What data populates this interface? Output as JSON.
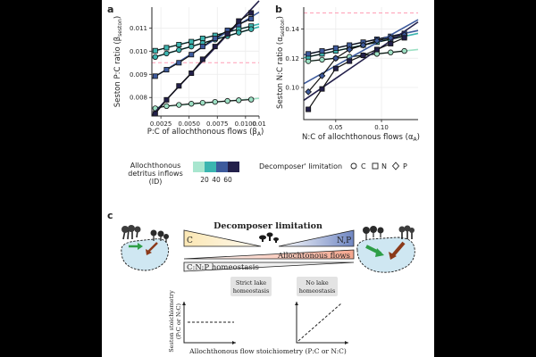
{
  "panel_a": {
    "letter": "a",
    "ylabel_main": "Seston P:C ratio (β",
    "ylabel_sub": "seston",
    "ylabel_end": ")",
    "xlabel_main": "P:C of allochthonous flows (β",
    "xlabel_sub": "A",
    "xlabel_end": ")",
    "yticks": [
      "0.008",
      "0.009",
      "0.010",
      "0.011"
    ],
    "xticks": [
      "0.0025",
      "0.0050",
      "0.0075",
      "0.0100",
      "0.01"
    ]
  },
  "panel_b": {
    "letter": "b",
    "ylabel_main": "Seston N:C ratio (α",
    "ylabel_sub": "seston",
    "ylabel_end": ")",
    "xlabel_main": "N:C of allochthonous flows (α",
    "xlabel_sub": "A",
    "xlabel_end": ")",
    "yticks": [
      "0.10",
      "0.12",
      "0.14"
    ],
    "xticks": [
      "0.05",
      "0.10"
    ]
  },
  "legend": {
    "id_title_1": "Allochthonous",
    "id_title_2": "detritus inflows",
    "id_title_3": "(ID)",
    "id_values": [
      "20",
      "40",
      "60"
    ],
    "id_colors": [
      "#a8e6cf",
      "#3bb5b0",
      "#3d5a9c",
      "#23204a"
    ],
    "decomposer_title": "Decomposer' limitation",
    "decomposer_items": [
      {
        "symbol": "circle",
        "label": "C"
      },
      {
        "symbol": "square",
        "label": "N"
      },
      {
        "symbol": "diamond",
        "label": "P"
      }
    ]
  },
  "chart_data": [
    {
      "type": "line",
      "panel": "a",
      "xlabel": "P:C of allochthonous flows (βA)",
      "ylabel": "Seston P:C ratio (βseston)",
      "xlim": [
        0.0017,
        0.0112
      ],
      "ylim": [
        0.0072,
        0.0119
      ],
      "reference_line": {
        "y": 0.0095,
        "style": "dashed",
        "color": "#ff9eb5"
      },
      "series": [
        {
          "color": "#9de0c4",
          "marker": "circle",
          "x": [
            0.002,
            0.003,
            0.0041,
            0.0052,
            0.0062,
            0.0073,
            0.0084,
            0.0094,
            0.0105
          ],
          "y": [
            0.00753,
            0.00763,
            0.00768,
            0.00773,
            0.00777,
            0.00781,
            0.00785,
            0.00788,
            0.00791
          ]
        },
        {
          "color": "#3bb5b0",
          "marker": "square",
          "x": [
            0.002,
            0.003,
            0.0041,
            0.0052,
            0.0062,
            0.0073,
            0.0084,
            0.0094,
            0.0105
          ],
          "y": [
            0.01002,
            0.01015,
            0.01028,
            0.01041,
            0.01055,
            0.01068,
            0.01082,
            0.01095,
            0.01108
          ]
        },
        {
          "color": "#3bb5b0",
          "marker": "circle",
          "x": [
            0.002,
            0.003,
            0.0041,
            0.0052,
            0.0062,
            0.0073,
            0.0084,
            0.0094,
            0.0105
          ],
          "y": [
            0.00975,
            0.0099,
            0.01005,
            0.0102,
            0.01035,
            0.0105,
            0.01065,
            0.0108,
            0.01095
          ]
        },
        {
          "color": "#3d5a9c",
          "marker": "square",
          "x": [
            0.002,
            0.003,
            0.0041,
            0.0052,
            0.0062,
            0.0073,
            0.0084,
            0.0094,
            0.0105
          ],
          "y": [
            0.00892,
            0.0092,
            0.0095,
            0.00985,
            0.0102,
            0.01055,
            0.0109,
            0.01115,
            0.0114
          ]
        },
        {
          "color": "#23204a",
          "marker": "square",
          "x": [
            0.002,
            0.003,
            0.0041,
            0.0052,
            0.0062,
            0.0073,
            0.0084,
            0.0094,
            0.0105
          ],
          "y": [
            0.0073,
            0.0079,
            0.0085,
            0.00905,
            0.00965,
            0.0102,
            0.01075,
            0.0113,
            0.01165
          ]
        }
      ]
    },
    {
      "type": "line",
      "panel": "b",
      "xlabel": "N:C of allochthonous flows (αA)",
      "ylabel": "Seston N:C ratio (αseston)",
      "xlim": [
        0.015,
        0.14
      ],
      "ylim": [
        0.078,
        0.155
      ],
      "reference_line": {
        "y": 0.151,
        "style": "dashed",
        "color": "#ff9eb5"
      },
      "series": [
        {
          "color": "#9de0c4",
          "marker": "circle",
          "x": [
            0.02,
            0.035,
            0.05,
            0.065,
            0.08,
            0.095,
            0.11,
            0.125
          ],
          "y": [
            0.118,
            0.119,
            0.12,
            0.121,
            0.122,
            0.123,
            0.124,
            0.125
          ]
        },
        {
          "color": "#3bb5b0",
          "marker": "square",
          "x": [
            0.02,
            0.035,
            0.05,
            0.065,
            0.08,
            0.095,
            0.11,
            0.125
          ],
          "y": [
            0.121,
            0.123,
            0.125,
            0.127,
            0.129,
            0.131,
            0.133,
            0.135
          ]
        },
        {
          "color": "#3d5a9c",
          "marker": "square",
          "x": [
            0.02,
            0.035,
            0.05,
            0.065,
            0.08,
            0.095,
            0.11,
            0.125
          ],
          "y": [
            0.123,
            0.125,
            0.127,
            0.129,
            0.131,
            0.133,
            0.135,
            0.137
          ]
        },
        {
          "color": "#3d5a9c",
          "marker": "diamond",
          "x": [
            0.02,
            0.035,
            0.05,
            0.065,
            0.08,
            0.095,
            0.11,
            0.125
          ],
          "y": [
            0.097,
            0.108,
            0.12,
            0.126,
            0.129,
            0.132,
            0.134,
            0.136
          ]
        },
        {
          "color": "#23204a",
          "marker": "square",
          "x": [
            0.02,
            0.035,
            0.05,
            0.065,
            0.08,
            0.095,
            0.11,
            0.125
          ],
          "y": [
            0.085,
            0.099,
            0.113,
            0.118,
            0.122,
            0.126,
            0.13,
            0.134
          ]
        }
      ]
    }
  ],
  "schematic": {
    "letter": "c",
    "title": "Decomposer limitation",
    "left_label": "C",
    "right_label": "N,P",
    "flows_label": "Allochtonous flows",
    "homeostasis_label": "C:N:P homeostasis",
    "strict_label_1": "Strict lake",
    "strict_label_2": "homeostasis",
    "nolake_label_1": "No lake",
    "nolake_label_2": "homeostasis",
    "ylabel_1": "Seston stoichiometry",
    "ylabel_2": "(P:C or N:C)",
    "xlabel": "Allochthonous flow stoichiometry (P:C or N:C)"
  }
}
